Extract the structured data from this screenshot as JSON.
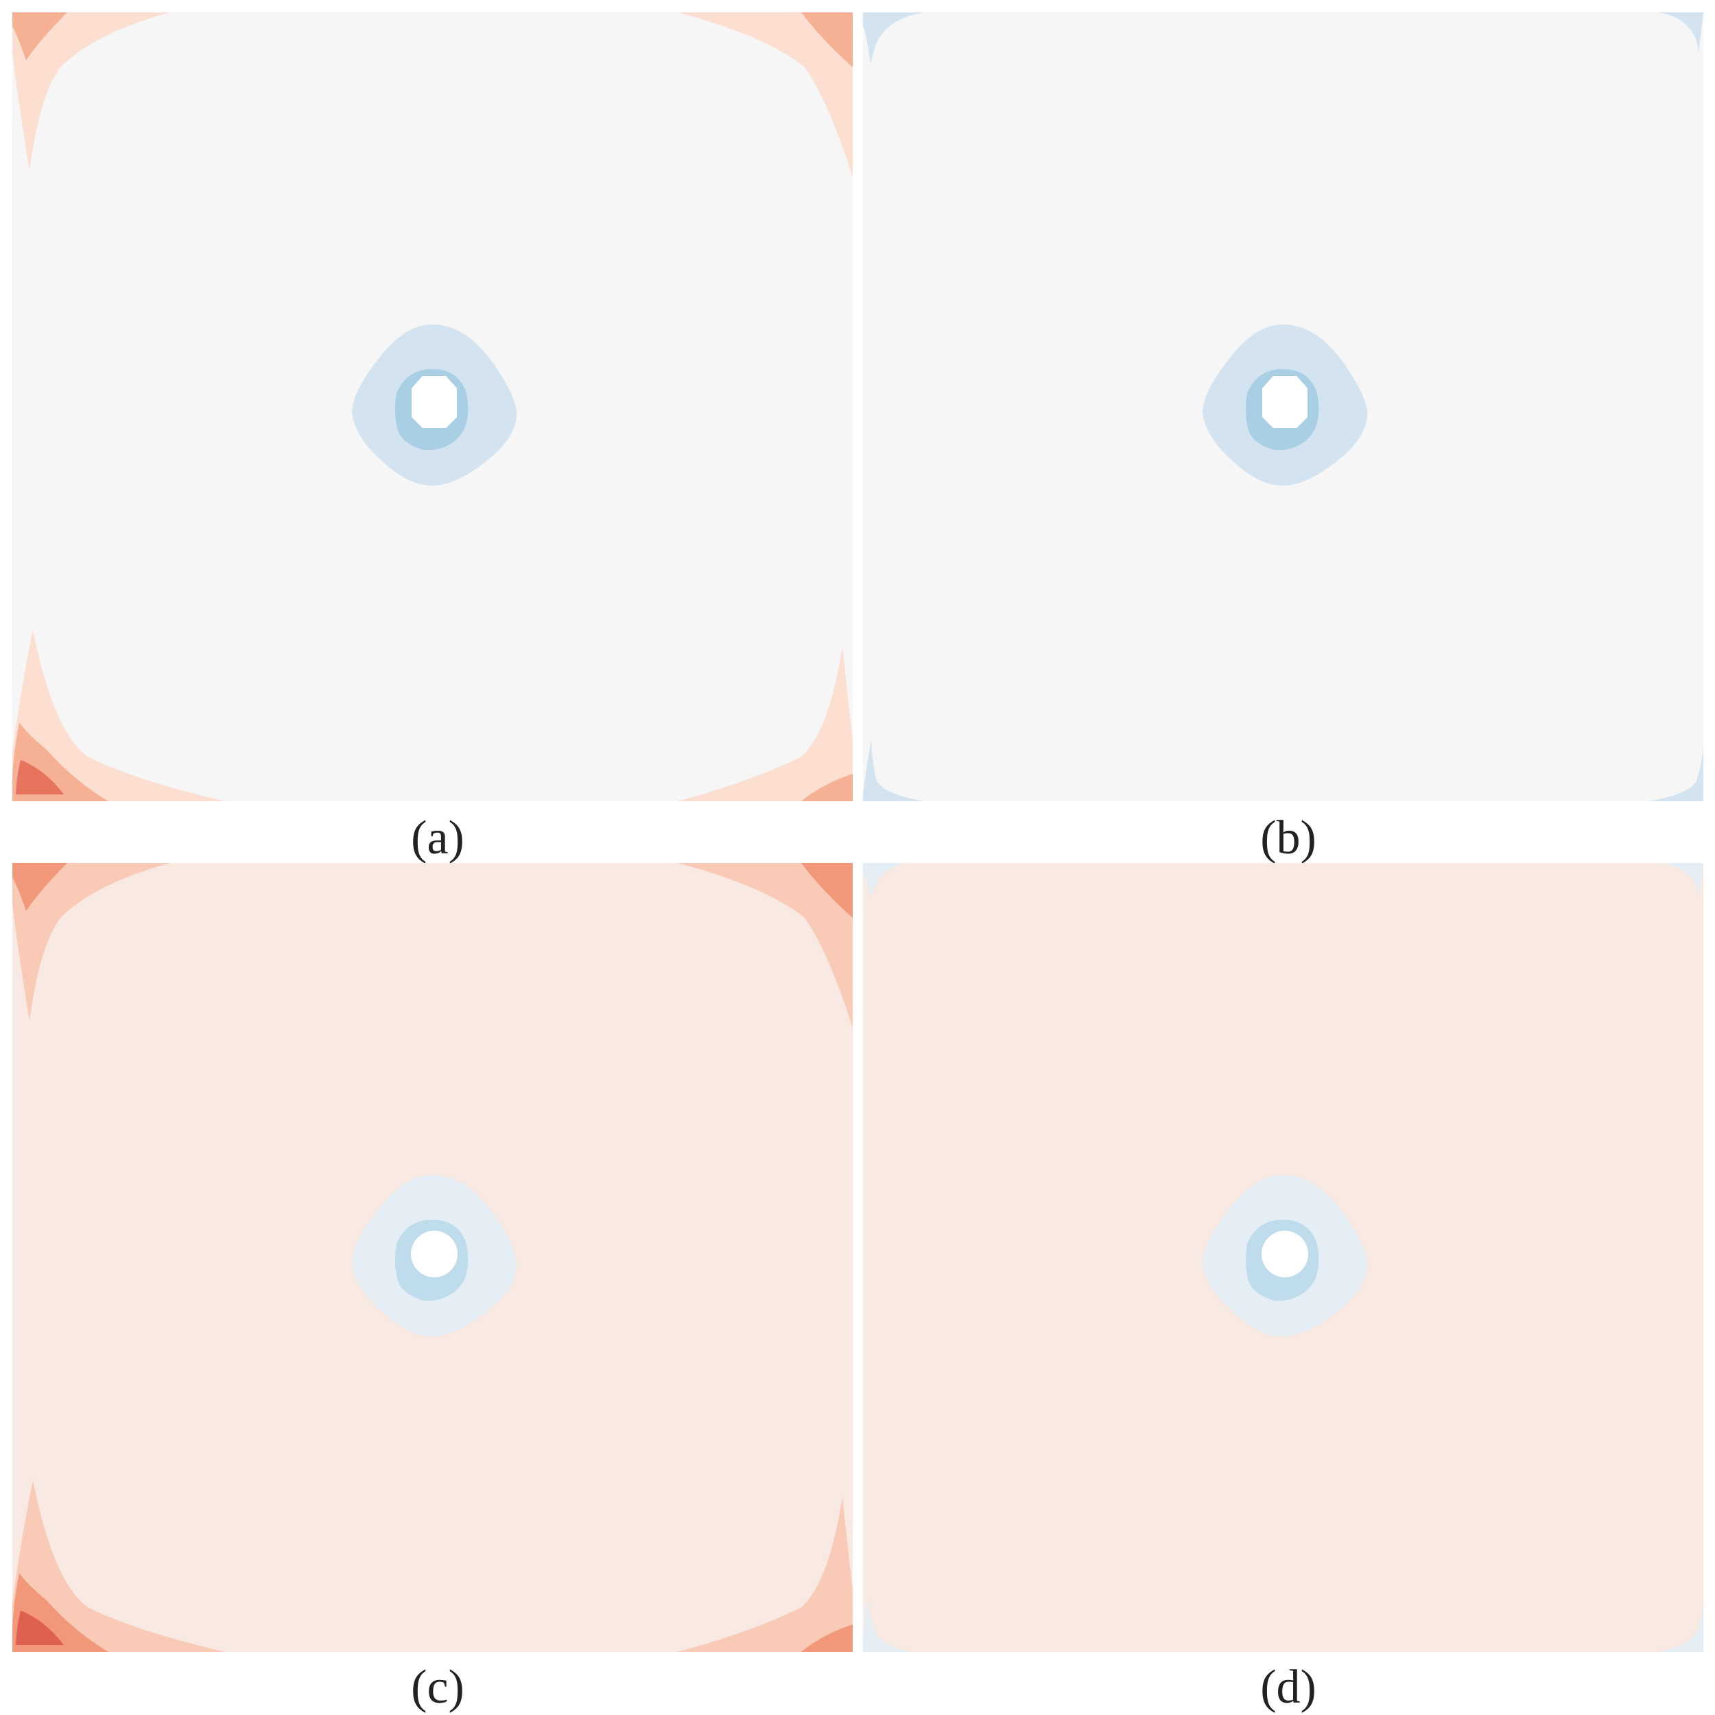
{
  "panels": [
    {
      "id": "a",
      "caption": "(a)"
    },
    {
      "id": "b",
      "caption": "(b)"
    },
    {
      "id": "c",
      "caption": "(c)"
    },
    {
      "id": "d",
      "caption": "(d)"
    }
  ],
  "colors": {
    "background_neutral": "#f5f6f5",
    "background_pink": "#f8e9e3",
    "red_1": "#fcdfd1",
    "red_2": "#f6b094",
    "red_3": "#e5735d",
    "red_1_c": "#f9cab5",
    "red_2_c": "#f1977a",
    "red_3_c": "#de6150",
    "blue_1": "#d3e4f0",
    "blue_2": "#a9cfe5",
    "blue_1_light": "#e4eef4",
    "blue_2_light": "#bfdcec"
  }
}
